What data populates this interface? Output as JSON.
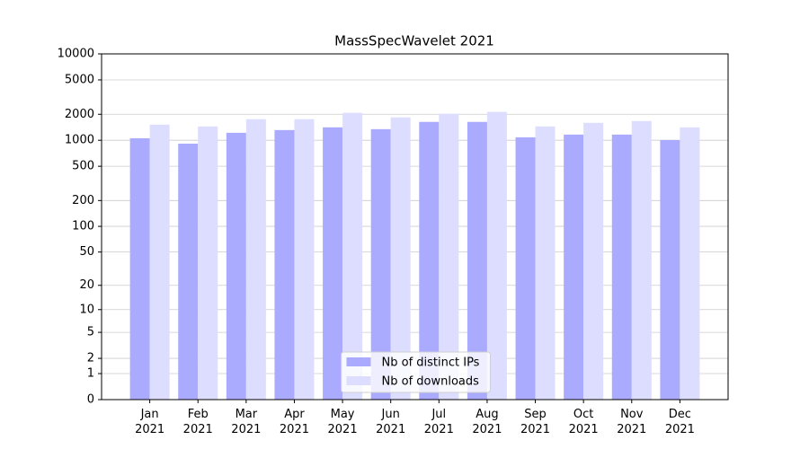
{
  "chart_data": {
    "type": "bar",
    "title": "MassSpecWavelet 2021",
    "categories": [
      "Jan 2021",
      "Feb 2021",
      "Mar 2021",
      "Apr 2021",
      "May 2021",
      "Jun 2021",
      "Jul 2021",
      "Aug 2021",
      "Sep 2021",
      "Oct 2021",
      "Nov 2021",
      "Dec 2021"
    ],
    "series": [
      {
        "name": "Nb of distinct IPs",
        "color": "#aaaaff",
        "values": [
          1056,
          914,
          1221,
          1313,
          1412,
          1345,
          1633,
          1633,
          1082,
          1164,
          1164,
          1006
        ]
      },
      {
        "name": "Nb of downloads",
        "color": "#ddddff",
        "values": [
          1518,
          1446,
          1754,
          1754,
          2080,
          1840,
          2030,
          2130,
          1446,
          1592,
          1670,
          1412
        ]
      }
    ],
    "yscale": "log1p",
    "ylim": [
      0,
      10000
    ],
    "yticks": [
      0,
      1,
      2,
      5,
      10,
      20,
      50,
      100,
      200,
      500,
      1000,
      2000,
      5000,
      10000
    ],
    "grid": true,
    "legend": "lower center"
  }
}
